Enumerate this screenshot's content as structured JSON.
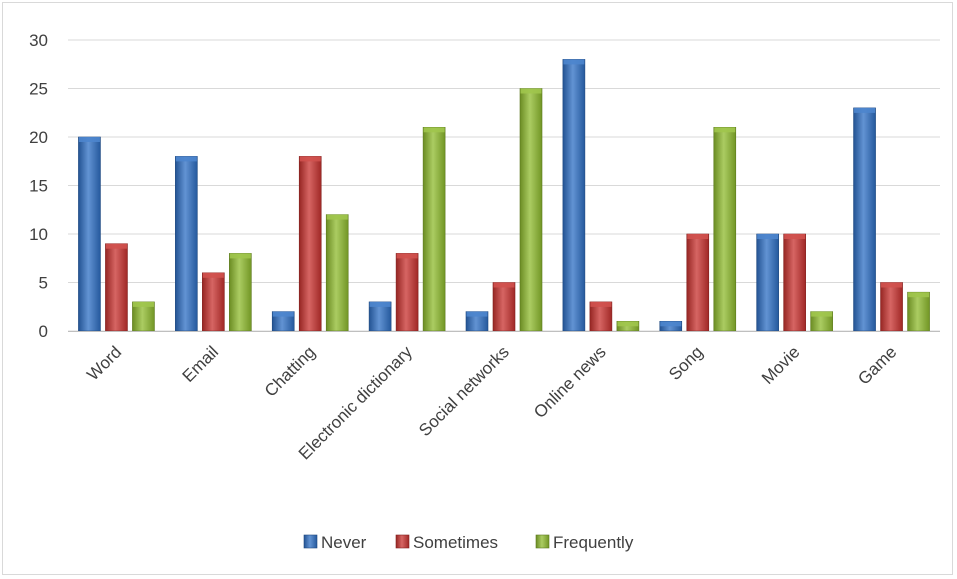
{
  "chart_data": {
    "type": "bar",
    "categories": [
      "Word",
      "Email",
      "Chatting",
      "Electronic dictionary",
      "Social networks",
      "Online news",
      "Song",
      "Movie",
      "Game"
    ],
    "series": [
      {
        "name": "Never",
        "values": [
          20,
          18,
          2,
          3,
          2,
          28,
          1,
          10,
          23
        ],
        "color": "#2e6fc4"
      },
      {
        "name": "Sometimes",
        "values": [
          9,
          6,
          18,
          8,
          5,
          3,
          10,
          10,
          5
        ],
        "color": "#c8322f"
      },
      {
        "name": "Frequently",
        "values": [
          3,
          8,
          12,
          21,
          25,
          1,
          21,
          2,
          4
        ],
        "color": "#8fbb2e"
      }
    ],
    "ylim": [
      0,
      30
    ],
    "yticks": [
      0,
      5,
      10,
      15,
      20,
      25,
      30
    ],
    "grid": true,
    "legend_position": "bottom",
    "title": "",
    "xlabel": "",
    "ylabel": ""
  }
}
